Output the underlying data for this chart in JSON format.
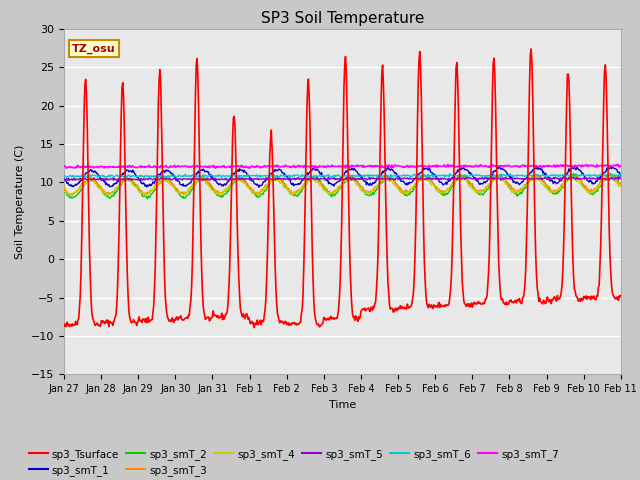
{
  "title": "SP3 Soil Temperature",
  "xlabel": "Time",
  "ylabel": "Soil Temperature (C)",
  "ylim": [
    -15,
    30
  ],
  "n_days": 15,
  "annotation_text": "TZ_osu",
  "plot_bg": "#e8e8e8",
  "fig_bg": "#d8d8d8",
  "grid_color": "white",
  "series_order": [
    "sp3_Tsurface",
    "sp3_smT_1",
    "sp3_smT_2",
    "sp3_smT_3",
    "sp3_smT_4",
    "sp3_smT_5",
    "sp3_smT_6",
    "sp3_smT_7"
  ],
  "series_colors": [
    "#ff0000",
    "#0000cc",
    "#00cc00",
    "#ff8800",
    "#cccc00",
    "#9900cc",
    "#00cccc",
    "#ff00ff"
  ],
  "series_lw": [
    1.2,
    1.0,
    1.0,
    1.0,
    1.0,
    1.0,
    1.0,
    1.2
  ],
  "xtick_labels": [
    "Jan 27",
    "Jan 28",
    "Jan 29",
    "Jan 30",
    "Jan 31",
    "Feb 1",
    "Feb 2",
    "Feb 3",
    "Feb 4",
    "Feb 5",
    "Feb 6",
    "Feb 7",
    "Feb 8",
    "Feb 9",
    "Feb 10",
    "Feb 11"
  ],
  "yticks": [
    -15,
    -10,
    -5,
    0,
    5,
    10,
    15,
    20,
    25,
    30
  ],
  "legend_order": [
    "sp3_Tsurface",
    "sp3_smT_1",
    "sp3_smT_2",
    "sp3_smT_3",
    "sp3_smT_4",
    "sp3_smT_5",
    "sp3_smT_6",
    "sp3_smT_7"
  ]
}
